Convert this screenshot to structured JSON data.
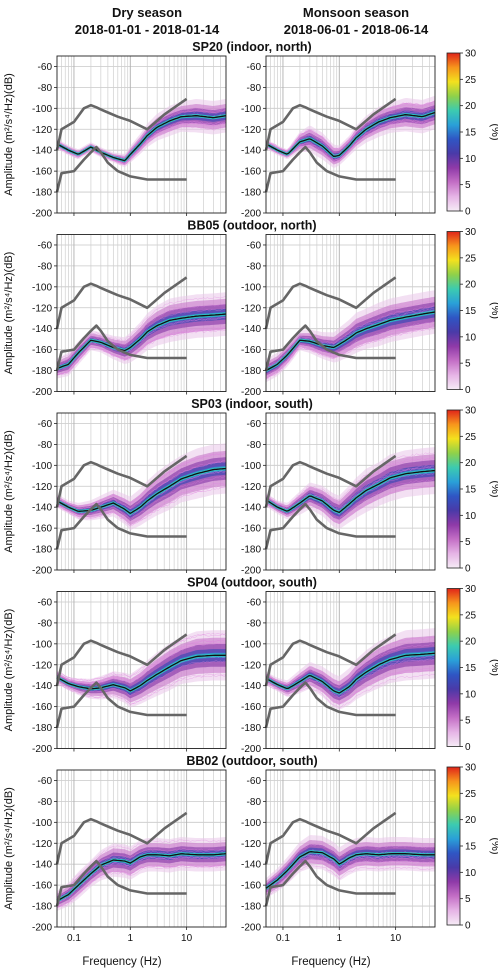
{
  "columns": [
    {
      "title": "Dry season",
      "dates": "2018-01-01 - 2018-01-14"
    },
    {
      "title": "Monsoon season",
      "dates": "2018-06-01 - 2018-06-14"
    }
  ],
  "chart_data": {
    "type": "heatmap",
    "ylabel": "Amplitude (m²/s⁴/Hz)(dB)",
    "xlabel": "Frequency (Hz)",
    "x_scale": "log",
    "xlim": [
      0.05,
      50
    ],
    "ylim": [
      -200,
      -50
    ],
    "x_ticks": [
      0.1,
      1,
      10
    ],
    "x_tick_labels": [
      "0.1",
      "1",
      "10"
    ],
    "y_ticks": [
      -60,
      -80,
      -100,
      -120,
      -140,
      -160,
      -180,
      -200
    ],
    "y_tick_labels": [
      "-60",
      "-80",
      "-100",
      "-120",
      "-140",
      "-160",
      "-180",
      "-200"
    ],
    "grid": true,
    "colorbar": {
      "label": "(%)",
      "range": [
        0,
        30
      ],
      "ticks": [
        0,
        5,
        10,
        15,
        20,
        25,
        30
      ],
      "tick_labels": [
        "0",
        "5",
        "10",
        "15",
        "20",
        "25",
        "30"
      ],
      "colors": [
        "#f6ecf6",
        "#e6b4e6",
        "#c46fc6",
        "#8f3aa8",
        "#4a3aa8",
        "#2f56c4",
        "#2aa0d8",
        "#3ccbb0",
        "#8fd14a",
        "#f3e11e",
        "#f7951c",
        "#e0241a"
      ]
    },
    "reference_models": {
      "frequency": [
        0.06,
        0.1,
        0.15,
        0.2,
        0.25,
        0.3,
        0.4,
        0.6,
        1,
        2,
        4,
        10
      ],
      "upper": [
        -120,
        -113,
        -100,
        -97,
        -99,
        -101,
        -104,
        -108,
        -112,
        -120,
        -106,
        -91
      ],
      "lower": [
        -162,
        -160,
        -149,
        -142,
        -137,
        -142,
        -152,
        -160,
        -165,
        -168,
        -168,
        -168
      ],
      "upper_left": {
        "frequency": [
          0.05,
          0.06
        ],
        "values": [
          -140,
          -120
        ]
      },
      "lower_left": {
        "frequency": [
          0.05,
          0.06
        ],
        "values": [
          -180,
          -162
        ]
      }
    },
    "panels": [
      {
        "title": "SP20 (indoor, north)",
        "dry": {
          "frequency": [
            0.05,
            0.08,
            0.12,
            0.2,
            0.3,
            0.5,
            0.8,
            1,
            1.5,
            2,
            3,
            5,
            8,
            15,
            30,
            50
          ],
          "median": [
            -134,
            -140,
            -144,
            -137,
            -142,
            -147,
            -150,
            -144,
            -134,
            -126,
            -118,
            -112,
            -108,
            -107,
            -109,
            -107
          ],
          "spread": [
            3,
            3,
            3,
            3,
            3,
            3,
            4,
            5,
            6,
            7,
            8,
            9,
            9,
            10,
            10,
            10
          ]
        },
        "monsoon": {
          "frequency": [
            0.05,
            0.08,
            0.12,
            0.2,
            0.3,
            0.5,
            0.8,
            1,
            1.5,
            2,
            3,
            5,
            8,
            15,
            30,
            50
          ],
          "median": [
            -134,
            -140,
            -144,
            -132,
            -129,
            -136,
            -146,
            -145,
            -136,
            -128,
            -120,
            -113,
            -109,
            -106,
            -108,
            -104
          ],
          "spread": [
            3,
            3,
            3,
            6,
            8,
            8,
            7,
            6,
            6,
            7,
            8,
            9,
            9,
            10,
            10,
            10
          ]
        }
      },
      {
        "title": "BB05 (outdoor, north)",
        "dry": {
          "frequency": [
            0.05,
            0.08,
            0.12,
            0.2,
            0.3,
            0.5,
            0.8,
            1,
            1.5,
            2,
            3,
            5,
            8,
            15,
            30,
            50
          ],
          "median": [
            -178,
            -174,
            -163,
            -151,
            -153,
            -158,
            -161,
            -158,
            -150,
            -143,
            -137,
            -132,
            -130,
            -128,
            -127,
            -126
          ],
          "spread": [
            6,
            7,
            7,
            6,
            6,
            7,
            8,
            9,
            10,
            11,
            12,
            13,
            13,
            13,
            13,
            13
          ]
        },
        "monsoon": {
          "frequency": [
            0.05,
            0.08,
            0.12,
            0.2,
            0.3,
            0.5,
            0.8,
            1,
            1.5,
            2,
            3,
            5,
            8,
            15,
            30,
            50
          ],
          "median": [
            -180,
            -174,
            -165,
            -151,
            -152,
            -156,
            -158,
            -155,
            -149,
            -144,
            -140,
            -136,
            -132,
            -129,
            -126,
            -124
          ],
          "spread": [
            7,
            7,
            7,
            6,
            7,
            8,
            9,
            10,
            11,
            12,
            12,
            13,
            13,
            13,
            13,
            13
          ]
        }
      },
      {
        "title": "SP03 (indoor, south)",
        "dry": {
          "frequency": [
            0.05,
            0.08,
            0.12,
            0.2,
            0.3,
            0.5,
            0.8,
            1,
            1.5,
            2,
            3,
            5,
            8,
            15,
            30,
            50
          ],
          "median": [
            -134,
            -140,
            -144,
            -143,
            -140,
            -136,
            -142,
            -146,
            -140,
            -134,
            -127,
            -120,
            -113,
            -108,
            -104,
            -103
          ],
          "spread": [
            4,
            4,
            5,
            6,
            7,
            8,
            9,
            10,
            11,
            12,
            13,
            14,
            14,
            15,
            15,
            15
          ]
        },
        "monsoon": {
          "frequency": [
            0.05,
            0.08,
            0.12,
            0.2,
            0.3,
            0.5,
            0.8,
            1,
            1.5,
            2,
            3,
            5,
            8,
            15,
            30,
            50
          ],
          "median": [
            -133,
            -140,
            -144,
            -136,
            -129,
            -134,
            -143,
            -145,
            -137,
            -131,
            -124,
            -118,
            -112,
            -108,
            -106,
            -105
          ],
          "spread": [
            4,
            4,
            5,
            7,
            8,
            9,
            10,
            10,
            11,
            12,
            13,
            13,
            14,
            14,
            14,
            14
          ]
        }
      },
      {
        "title": "SP04 (outdoor, south)",
        "dry": {
          "frequency": [
            0.05,
            0.08,
            0.12,
            0.2,
            0.3,
            0.5,
            0.8,
            1,
            1.5,
            2,
            3,
            5,
            8,
            15,
            30,
            50
          ],
          "median": [
            -132,
            -138,
            -141,
            -143,
            -142,
            -139,
            -142,
            -145,
            -140,
            -135,
            -129,
            -122,
            -116,
            -112,
            -111,
            -111
          ],
          "spread": [
            4,
            4,
            5,
            6,
            7,
            8,
            9,
            10,
            11,
            12,
            13,
            14,
            14,
            15,
            15,
            15
          ]
        },
        "monsoon": {
          "frequency": [
            0.05,
            0.08,
            0.12,
            0.2,
            0.3,
            0.5,
            0.8,
            1,
            1.5,
            2,
            3,
            5,
            8,
            15,
            30,
            50
          ],
          "median": [
            -133,
            -139,
            -143,
            -136,
            -130,
            -136,
            -145,
            -147,
            -141,
            -134,
            -127,
            -120,
            -115,
            -111,
            -110,
            -109
          ],
          "spread": [
            4,
            4,
            5,
            7,
            8,
            9,
            10,
            10,
            11,
            12,
            13,
            14,
            14,
            15,
            15,
            15
          ]
        }
      },
      {
        "title": "BB02 (outdoor, south)",
        "dry": {
          "frequency": [
            0.05,
            0.08,
            0.12,
            0.2,
            0.3,
            0.5,
            0.8,
            1,
            1.5,
            2,
            3,
            5,
            8,
            15,
            30,
            50
          ],
          "median": [
            -175,
            -169,
            -160,
            -149,
            -141,
            -136,
            -137,
            -139,
            -133,
            -131,
            -131,
            -132,
            -130,
            -131,
            -131,
            -130
          ],
          "spread": [
            6,
            7,
            8,
            8,
            9,
            10,
            10,
            10,
            10,
            10,
            10,
            10,
            10,
            10,
            10,
            10
          ]
        },
        "monsoon": {
          "frequency": [
            0.05,
            0.08,
            0.12,
            0.2,
            0.3,
            0.5,
            0.8,
            1,
            1.5,
            2,
            3,
            5,
            8,
            15,
            30,
            50
          ],
          "median": [
            -163,
            -155,
            -146,
            -133,
            -128,
            -129,
            -135,
            -140,
            -134,
            -131,
            -130,
            -131,
            -130,
            -130,
            -131,
            -131
          ],
          "spread": [
            6,
            7,
            8,
            9,
            10,
            10,
            10,
            10,
            10,
            10,
            10,
            10,
            10,
            10,
            10,
            10
          ]
        }
      }
    ]
  }
}
